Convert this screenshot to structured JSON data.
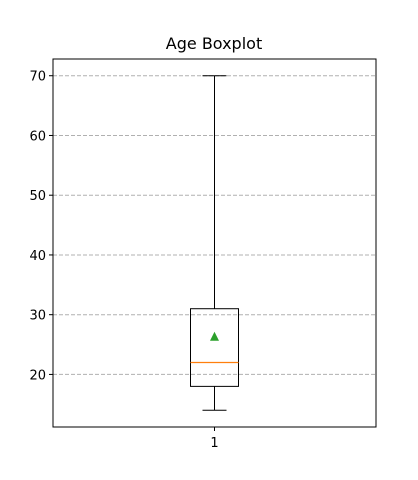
{
  "chart_data": {
    "type": "boxplot",
    "title": "Age Boxplot",
    "xlabel": "",
    "ylabel": "",
    "categories": [
      "1"
    ],
    "boxes": [
      {
        "label": "1",
        "whisker_low": 14,
        "q1": 18,
        "median": 22,
        "q3": 31,
        "whisker_high": 70,
        "mean": 26.3
      }
    ],
    "ylim": [
      11.2,
      72.8
    ],
    "yticks": [
      20,
      30,
      40,
      50,
      60,
      70
    ],
    "grid": "y-dashed",
    "colors": {
      "box": "#000000",
      "median": "#ff7f0e",
      "mean_marker": "#2ca02c",
      "grid": "#b0b0b0"
    }
  }
}
